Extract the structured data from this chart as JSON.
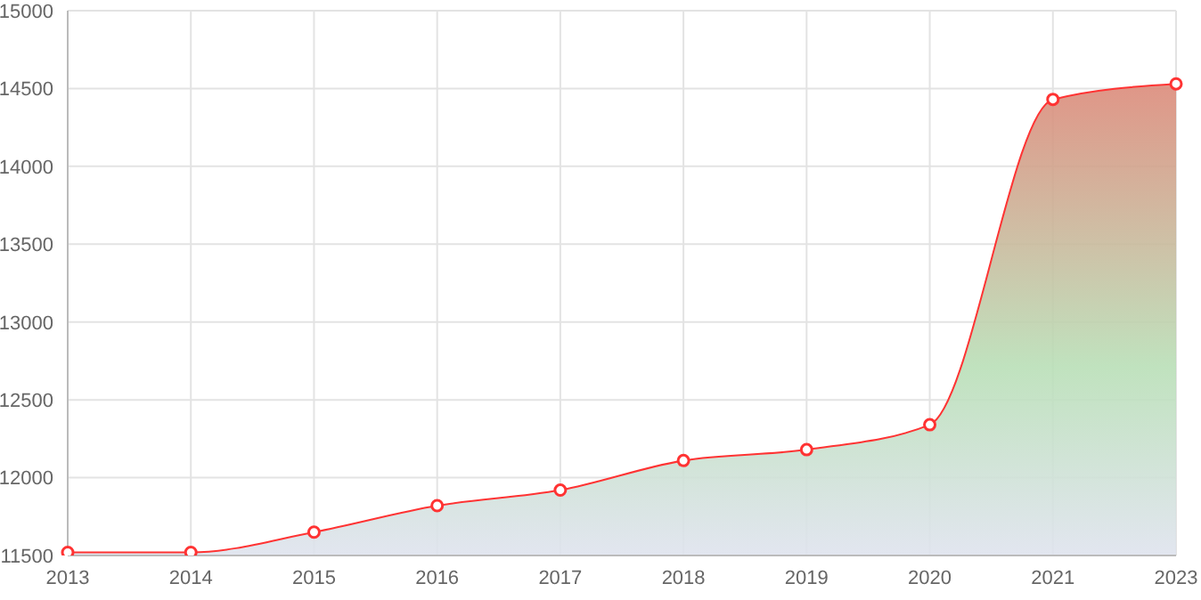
{
  "chart_data": {
    "type": "area",
    "categories": [
      "2013",
      "2014",
      "2015",
      "2016",
      "2017",
      "2018",
      "2019",
      "2020",
      "2021",
      "2023"
    ],
    "series": [
      {
        "color": "#ff3333",
        "values": [
          11520,
          11520,
          11650,
          11820,
          11920,
          12110,
          12180,
          12340,
          14430,
          14530
        ]
      }
    ],
    "ylim": [
      11500,
      15000
    ],
    "yticks": [
      11500,
      12000,
      12500,
      13000,
      13500,
      14000,
      14500,
      15000
    ],
    "grid": true,
    "marker": "circle",
    "legend": false
  }
}
